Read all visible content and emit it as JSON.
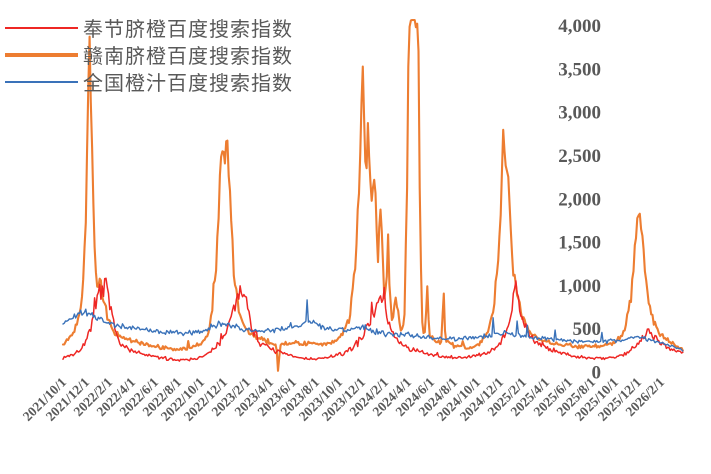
{
  "chart_data": {
    "type": "line",
    "title": "",
    "legend_position": "top-left",
    "grid": false,
    "t_end": 54,
    "step": 0.11,
    "y_axis": {
      "min": 0,
      "max": 4000,
      "tick_step": 500,
      "side": "right",
      "tick_labels": [
        "0",
        "500",
        "1,000",
        "1,500",
        "2,000",
        "2,500",
        "3,000",
        "3,500",
        "4,000"
      ]
    },
    "x_axis": {
      "start": "2021/10/1",
      "end": "2026/2/1",
      "tick_interval_months": 2,
      "tick_labels": [
        "2021/10/1",
        "2021/12/1",
        "2022/2/1",
        "2022/4/1",
        "2022/6/1",
        "2022/8/1",
        "2022/10/1",
        "2022/12/1",
        "2023/2/1",
        "2023/4/1",
        "2023/6/1",
        "2023/8/1",
        "2023/10/1",
        "2023/12/1",
        "2024/2/1",
        "2024/4/1",
        "2024/6/1",
        "2024/8/1",
        "2024/10/1",
        "2024/12/1",
        "2025/2/1",
        "2025/4/1",
        "2025/6/1",
        "2025/8/1",
        "2025/10/1",
        "2025/12/1",
        "2026/2/1"
      ]
    },
    "series": [
      {
        "name": "赣南脐橙百度搜索指数",
        "legend_index": 1,
        "color": "#ED7D31",
        "width": 2.1,
        "noise": 0.09,
        "spike_prob": 0.015,
        "spike_gain": 1.2,
        "seed": 13,
        "anchors": [
          [
            0,
            320
          ],
          [
            0.6,
            400
          ],
          [
            1.2,
            560
          ],
          [
            1.7,
            900
          ],
          [
            2,
            1800
          ],
          [
            2.25,
            3900
          ],
          [
            2.5,
            2700
          ],
          [
            2.7,
            1500
          ],
          [
            2.95,
            980
          ],
          [
            3.25,
            1020
          ],
          [
            3.6,
            780
          ],
          [
            4,
            580
          ],
          [
            4.5,
            450
          ],
          [
            5,
            400
          ],
          [
            6,
            365
          ],
          [
            7,
            330
          ],
          [
            8,
            295
          ],
          [
            9,
            272
          ],
          [
            10,
            262
          ],
          [
            11,
            272
          ],
          [
            12,
            330
          ],
          [
            12.6,
            430
          ],
          [
            13.1,
            800
          ],
          [
            13.5,
            1700
          ],
          [
            13.8,
            2700
          ],
          [
            14.05,
            2350
          ],
          [
            14.3,
            2620
          ],
          [
            14.55,
            1950
          ],
          [
            14.85,
            1150
          ],
          [
            15.3,
            720
          ],
          [
            15.8,
            520
          ],
          [
            16.4,
            430
          ],
          [
            17.2,
            375
          ],
          [
            18,
            345
          ],
          [
            18.55,
            310
          ],
          [
            18.7,
            15
          ],
          [
            18.9,
            310
          ],
          [
            19.6,
            335
          ],
          [
            20.5,
            340
          ],
          [
            21.5,
            325
          ],
          [
            22.5,
            315
          ],
          [
            23.5,
            340
          ],
          [
            24.3,
            430
          ],
          [
            24.9,
            620
          ],
          [
            25.4,
            1200
          ],
          [
            25.8,
            2300
          ],
          [
            26.05,
            3750
          ],
          [
            26.3,
            2250
          ],
          [
            26.55,
            2900
          ],
          [
            26.8,
            1800
          ],
          [
            27.05,
            2400
          ],
          [
            27.35,
            1300
          ],
          [
            27.65,
            1900
          ],
          [
            27.95,
            820
          ],
          [
            28.25,
            1250
          ],
          [
            28.6,
            620
          ],
          [
            29,
            830
          ],
          [
            29.4,
            440
          ],
          [
            29.7,
            640
          ],
          [
            29.92,
            2200
          ],
          [
            30.06,
            4050
          ],
          [
            30.5,
            4050
          ],
          [
            30.88,
            4050
          ],
          [
            31.05,
            1600
          ],
          [
            31.25,
            520
          ],
          [
            31.5,
            420
          ],
          [
            31.66,
            1060
          ],
          [
            31.85,
            430
          ],
          [
            32.4,
            360
          ],
          [
            32.95,
            340
          ],
          [
            33.08,
            1000
          ],
          [
            33.25,
            360
          ],
          [
            34,
            300
          ],
          [
            35,
            285
          ],
          [
            36,
            305
          ],
          [
            36.8,
            410
          ],
          [
            37.4,
            700
          ],
          [
            37.95,
            1500
          ],
          [
            38.35,
            2840
          ],
          [
            38.75,
            2050
          ],
          [
            39.15,
            1150
          ],
          [
            39.45,
            950
          ],
          [
            39.85,
            680
          ],
          [
            40.4,
            500
          ],
          [
            41.1,
            410
          ],
          [
            42,
            355
          ],
          [
            43,
            325
          ],
          [
            44,
            305
          ],
          [
            45,
            292
          ],
          [
            46,
            292
          ],
          [
            47,
            305
          ],
          [
            48,
            335
          ],
          [
            48.8,
            470
          ],
          [
            49.4,
            850
          ],
          [
            50.05,
            1950
          ],
          [
            50.45,
            1420
          ],
          [
            50.9,
            820
          ],
          [
            51.4,
            560
          ],
          [
            52.1,
            410
          ],
          [
            52.8,
            340
          ],
          [
            53.4,
            295
          ],
          [
            54,
            262
          ]
        ]
      },
      {
        "name": "奉节脐橙百度搜索指数",
        "legend_index": 0,
        "color": "#EE2724",
        "width": 1.5,
        "noise": 0.14,
        "spike_prob": 0.02,
        "spike_gain": 1.25,
        "seed": 7,
        "anchors": [
          [
            0,
            170
          ],
          [
            0.5,
            185
          ],
          [
            1,
            210
          ],
          [
            1.5,
            250
          ],
          [
            2,
            360
          ],
          [
            2.5,
            520
          ],
          [
            2.9,
            750
          ],
          [
            3.2,
            980
          ],
          [
            3.45,
            880
          ],
          [
            3.7,
            1020
          ],
          [
            4,
            820
          ],
          [
            4.3,
            600
          ],
          [
            4.7,
            420
          ],
          [
            5.2,
            310
          ],
          [
            6,
            240
          ],
          [
            7,
            200
          ],
          [
            8,
            175
          ],
          [
            9,
            155
          ],
          [
            10,
            140
          ],
          [
            11,
            150
          ],
          [
            12,
            165
          ],
          [
            12.7,
            220
          ],
          [
            13.4,
            300
          ],
          [
            14.1,
            430
          ],
          [
            14.7,
            650
          ],
          [
            15.2,
            880
          ],
          [
            15.55,
            1000
          ],
          [
            15.8,
            900
          ],
          [
            16.1,
            700
          ],
          [
            16.5,
            480
          ],
          [
            17,
            360
          ],
          [
            17.6,
            300
          ],
          [
            18.3,
            255
          ],
          [
            19,
            220
          ],
          [
            20,
            180
          ],
          [
            21,
            155
          ],
          [
            22,
            150
          ],
          [
            23,
            165
          ],
          [
            24,
            200
          ],
          [
            25,
            255
          ],
          [
            25.7,
            350
          ],
          [
            26.4,
            500
          ],
          [
            27,
            700
          ],
          [
            27.4,
            860
          ],
          [
            27.8,
            780
          ],
          [
            28.3,
            560
          ],
          [
            28.8,
            420
          ],
          [
            29.4,
            330
          ],
          [
            30,
            280
          ],
          [
            31,
            230
          ],
          [
            32,
            195
          ],
          [
            33,
            175
          ],
          [
            34,
            165
          ],
          [
            35,
            172
          ],
          [
            36,
            185
          ],
          [
            37,
            225
          ],
          [
            37.7,
            300
          ],
          [
            38.4,
            420
          ],
          [
            38.9,
            600
          ],
          [
            39.2,
            900
          ],
          [
            39.4,
            1080
          ],
          [
            39.65,
            760
          ],
          [
            40,
            560
          ],
          [
            40.6,
            430
          ],
          [
            41.3,
            340
          ],
          [
            42,
            290
          ],
          [
            43,
            235
          ],
          [
            44,
            195
          ],
          [
            45,
            170
          ],
          [
            46,
            158
          ],
          [
            47,
            162
          ],
          [
            48,
            175
          ],
          [
            49,
            215
          ],
          [
            49.7,
            290
          ],
          [
            50.3,
            400
          ],
          [
            50.8,
            470
          ],
          [
            51.3,
            430
          ],
          [
            51.8,
            360
          ],
          [
            52.3,
            310
          ],
          [
            52.8,
            270
          ],
          [
            53.3,
            240
          ],
          [
            54,
            215
          ]
        ]
      },
      {
        "name": "全国橙汁百度搜索指数",
        "legend_index": 2,
        "color": "#3A72B9",
        "width": 1.4,
        "noise": 0.08,
        "spike_prob": 0.04,
        "spike_gain": 1.35,
        "seed": 21,
        "anchors": [
          [
            0,
            560
          ],
          [
            0.7,
            620
          ],
          [
            1.4,
            670
          ],
          [
            2,
            690
          ],
          [
            2.6,
            650
          ],
          [
            3.2,
            610
          ],
          [
            4,
            565
          ],
          [
            5,
            525
          ],
          [
            6,
            505
          ],
          [
            7,
            485
          ],
          [
            8,
            472
          ],
          [
            9,
            458
          ],
          [
            10,
            450
          ],
          [
            11,
            458
          ],
          [
            12,
            472
          ],
          [
            12.8,
            520
          ],
          [
            13.6,
            555
          ],
          [
            14.4,
            545
          ],
          [
            15.2,
            515
          ],
          [
            16,
            488
          ],
          [
            17,
            472
          ],
          [
            18,
            480
          ],
          [
            19,
            500
          ],
          [
            20,
            515
          ],
          [
            20.8,
            545
          ],
          [
            21.4,
            585
          ],
          [
            22,
            555
          ],
          [
            22.8,
            515
          ],
          [
            23.6,
            492
          ],
          [
            24.5,
            482
          ],
          [
            25.4,
            502
          ],
          [
            26.2,
            515
          ],
          [
            27,
            475
          ],
          [
            28,
            440
          ],
          [
            29,
            425
          ],
          [
            30,
            432
          ],
          [
            31,
            412
          ],
          [
            32,
            392
          ],
          [
            33,
            382
          ],
          [
            34,
            380
          ],
          [
            35,
            390
          ],
          [
            36,
            402
          ],
          [
            37,
            420
          ],
          [
            38,
            448
          ],
          [
            38.8,
            442
          ],
          [
            39.6,
            428
          ],
          [
            40.4,
            405
          ],
          [
            41.2,
            392
          ],
          [
            42,
            382
          ],
          [
            43,
            372
          ],
          [
            44,
            362
          ],
          [
            45,
            352
          ],
          [
            46,
            347
          ],
          [
            47,
            352
          ],
          [
            48,
            362
          ],
          [
            49,
            382
          ],
          [
            50,
            402
          ],
          [
            50.8,
            382
          ],
          [
            51.6,
            352
          ],
          [
            52.4,
            322
          ],
          [
            53,
            298
          ],
          [
            53.6,
            270
          ],
          [
            54,
            240
          ]
        ]
      }
    ],
    "legend_items": [
      {
        "label": "奉节脐橙百度搜索指数",
        "color": "#EE2724"
      },
      {
        "label": "赣南脐橙百度搜索指数",
        "color": "#ED7D31"
      },
      {
        "label": "全国橙汁百度搜索指数",
        "color": "#3A72B9"
      }
    ],
    "text_color": "#595959"
  }
}
